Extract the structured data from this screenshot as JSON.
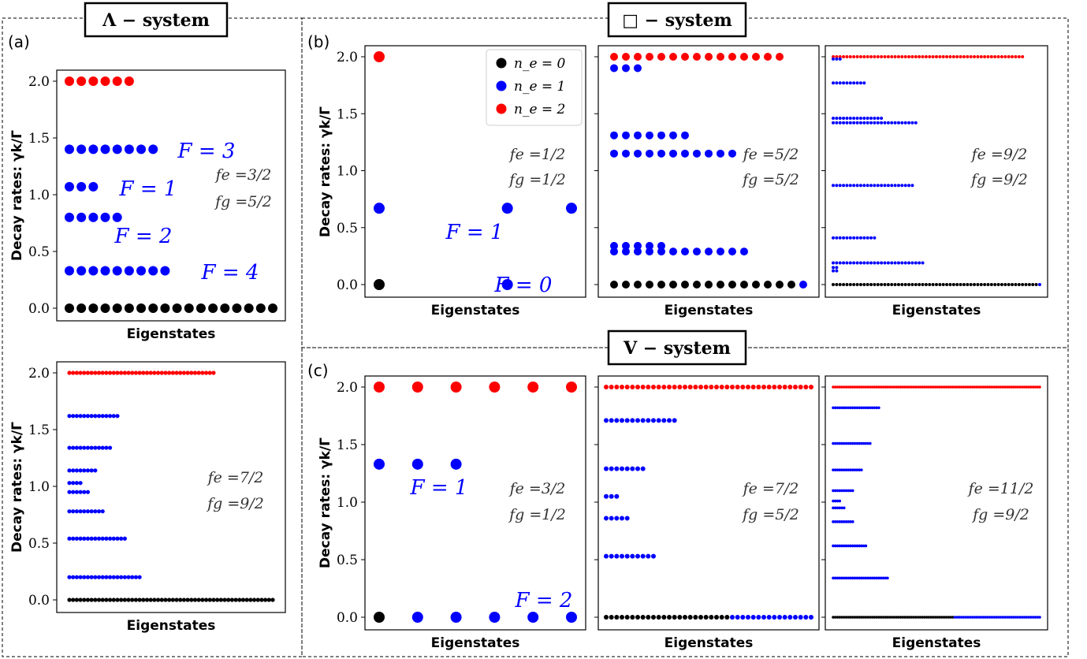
{
  "systems": {
    "lambda": {
      "title": "Λ − system"
    },
    "square": {
      "title": "□ − system"
    },
    "v": {
      "title": "V − system"
    }
  },
  "panel_labels": {
    "a": "(a)",
    "b": "(b)",
    "c": "(c)"
  },
  "legend": [
    {
      "label": "n_e = 0",
      "color": "#000000"
    },
    {
      "label": "n_e = 1",
      "color": "#0000ff"
    },
    {
      "label": "n_e = 2",
      "color": "#ff0000"
    }
  ],
  "colors": {
    "ne0": "#000000",
    "ne1": "#0000ff",
    "ne2": "#ff0000",
    "frame": "#000000"
  },
  "chart_data": [
    {
      "id": "a1",
      "type": "scatter",
      "ylim": [
        0,
        2.0
      ],
      "yticks": [
        "0.0",
        "0.5",
        "1.0",
        "1.5",
        "2.0"
      ],
      "ylabel": "Decay rates: γk/Γ",
      "xlabel": "Eigenstates",
      "params": [
        "fe =3/2",
        "fg =5/2"
      ],
      "annotations": [
        "F = 3",
        "F = 1",
        "F = 2",
        "F = 4"
      ],
      "series": [
        {
          "ne": 2,
          "y": 2.0,
          "count": 6
        },
        {
          "ne": 1,
          "y": 1.4,
          "count": 8
        },
        {
          "ne": 1,
          "y": 1.07,
          "count": 3
        },
        {
          "ne": 1,
          "y": 0.8,
          "count": 5
        },
        {
          "ne": 1,
          "y": 0.33,
          "count": 9
        },
        {
          "ne": 0,
          "y": 0.0,
          "count": 18
        }
      ]
    },
    {
      "id": "a2",
      "type": "scatter",
      "ylim": [
        0,
        2.0
      ],
      "yticks": [
        "0.0",
        "0.5",
        "1.0",
        "1.5",
        "2.0"
      ],
      "ylabel": "Decay rates: γk/Γ",
      "xlabel": "Eigenstates",
      "params": [
        "fe =7/2",
        "fg =9/2"
      ],
      "annotations": [],
      "series": [
        {
          "ne": 2,
          "y": 2.0,
          "count": 40
        },
        {
          "ne": 1,
          "y": 1.62,
          "count": 14
        },
        {
          "ne": 1,
          "y": 1.34,
          "count": 12
        },
        {
          "ne": 1,
          "y": 1.14,
          "count": 8
        },
        {
          "ne": 1,
          "y": 1.03,
          "count": 4
        },
        {
          "ne": 1,
          "y": 0.95,
          "count": 6
        },
        {
          "ne": 1,
          "y": 0.78,
          "count": 10
        },
        {
          "ne": 1,
          "y": 0.54,
          "count": 16
        },
        {
          "ne": 1,
          "y": 0.2,
          "count": 20
        },
        {
          "ne": 0,
          "y": 0.0,
          "count": 56
        }
      ]
    },
    {
      "id": "b1",
      "type": "scatter",
      "ylim": [
        0,
        2.0
      ],
      "yticks": [
        "0.0",
        "0.5",
        "1.0",
        "1.5",
        "2.0"
      ],
      "ylabel": "Decay rates: γk/Γ",
      "xlabel": "Eigenstates",
      "params": [
        "fe =1/2",
        "fg =1/2"
      ],
      "annotations": [
        "F = 1",
        "F = 0"
      ],
      "points": [
        {
          "ne": 2,
          "x": 0,
          "y": 2.0
        },
        {
          "ne": 1,
          "x": 0,
          "y": 0.67
        },
        {
          "ne": 1,
          "x": 2,
          "y": 0.67
        },
        {
          "ne": 1,
          "x": 3,
          "y": 0.67
        },
        {
          "ne": 0,
          "x": 0,
          "y": 0.0
        },
        {
          "ne": 1,
          "x": 2,
          "y": 0.0
        }
      ],
      "xcount": 4
    },
    {
      "id": "b2",
      "type": "scatter",
      "ylim": [
        0,
        2.0
      ],
      "yticks": [
        "0.0",
        "0.5",
        "1.0",
        "1.5",
        "2.0"
      ],
      "xlabel": "Eigenstates",
      "params": [
        "fe =5/2",
        "fg =5/2"
      ],
      "annotations": [],
      "series": [
        {
          "ne": 2,
          "y": 2.0,
          "count": 15
        },
        {
          "ne": 1,
          "y": 1.9,
          "count": 3
        },
        {
          "ne": 1,
          "y": 1.31,
          "count": 7
        },
        {
          "ne": 1,
          "y": 1.15,
          "count": 11
        },
        {
          "ne": 1,
          "y": 0.34,
          "count": 5
        },
        {
          "ne": 1,
          "y": 0.29,
          "count": 12
        },
        {
          "ne": 0,
          "y": 0.0,
          "count": 16
        }
      ],
      "extra": [
        {
          "ne": 1,
          "x": 16,
          "y": 0.0
        }
      ],
      "xcount": 17
    },
    {
      "id": "b3",
      "type": "scatter",
      "ylim": [
        0,
        2.0
      ],
      "yticks": [
        "0.0",
        "0.5",
        "1.0",
        "1.5",
        "2.0"
      ],
      "xlabel": "Eigenstates",
      "params": [
        "fe =9/2",
        "fg =9/2"
      ],
      "annotations": [],
      "series": [
        {
          "ne": 2,
          "y": 2.0,
          "count": 56
        },
        {
          "ne": 1,
          "y": 1.98,
          "count": 3
        },
        {
          "ne": 1,
          "y": 1.77,
          "count": 10
        },
        {
          "ne": 1,
          "y": 1.46,
          "count": 15
        },
        {
          "ne": 1,
          "y": 1.42,
          "count": 25
        },
        {
          "ne": 1,
          "y": 0.87,
          "count": 24
        },
        {
          "ne": 1,
          "y": 0.41,
          "count": 13
        },
        {
          "ne": 1,
          "y": 0.19,
          "count": 27
        },
        {
          "ne": 1,
          "y": 0.15,
          "count": 2
        },
        {
          "ne": 1,
          "y": 0.12,
          "count": 2
        },
        {
          "ne": 0,
          "y": 0.0,
          "count": 60
        }
      ],
      "extra": [
        {
          "ne": 1,
          "x": 60,
          "y": 0.0
        }
      ],
      "xcount": 61
    },
    {
      "id": "c1",
      "type": "scatter",
      "ylim": [
        0,
        2.0
      ],
      "yticks": [
        "0.0",
        "0.5",
        "1.0",
        "1.5",
        "2.0"
      ],
      "ylabel": "Decay rates: γk/Γ",
      "xlabel": "Eigenstates",
      "params": [
        "fe =3/2",
        "fg =1/2"
      ],
      "annotations": [
        "F = 1",
        "F = 2"
      ],
      "points": [
        {
          "ne": 2,
          "x": 0,
          "y": 2.0
        },
        {
          "ne": 2,
          "x": 1,
          "y": 2.0
        },
        {
          "ne": 2,
          "x": 2,
          "y": 2.0
        },
        {
          "ne": 2,
          "x": 3,
          "y": 2.0
        },
        {
          "ne": 2,
          "x": 4,
          "y": 2.0
        },
        {
          "ne": 2,
          "x": 5,
          "y": 2.0
        },
        {
          "ne": 1,
          "x": 0,
          "y": 1.33
        },
        {
          "ne": 1,
          "x": 1,
          "y": 1.33
        },
        {
          "ne": 1,
          "x": 2,
          "y": 1.33
        },
        {
          "ne": 0,
          "x": 0,
          "y": 0.0
        },
        {
          "ne": 1,
          "x": 1,
          "y": 0.0
        },
        {
          "ne": 1,
          "x": 2,
          "y": 0.0
        },
        {
          "ne": 1,
          "x": 3,
          "y": 0.0
        },
        {
          "ne": 1,
          "x": 4,
          "y": 0.0
        },
        {
          "ne": 1,
          "x": 5,
          "y": 0.0
        }
      ],
      "xcount": 6
    },
    {
      "id": "c2",
      "type": "scatter",
      "ylim": [
        0,
        2.0
      ],
      "yticks": [
        "0.0",
        "0.5",
        "1.0",
        "1.5",
        "2.0"
      ],
      "xlabel": "Eigenstates",
      "params": [
        "fe =7/2",
        "fg =5/2"
      ],
      "annotations": [],
      "series": [
        {
          "ne": 2,
          "y": 2.0,
          "count": 40
        },
        {
          "ne": 1,
          "y": 1.71,
          "count": 14
        },
        {
          "ne": 1,
          "y": 1.29,
          "count": 8
        },
        {
          "ne": 1,
          "y": 1.05,
          "count": 3
        },
        {
          "ne": 1,
          "y": 0.86,
          "count": 5
        },
        {
          "ne": 1,
          "y": 0.53,
          "count": 10
        },
        {
          "ne": 0,
          "y": 0.0,
          "count": 24
        }
      ],
      "extra_series": [
        {
          "ne": 1,
          "y": 0.0,
          "start": 24,
          "count": 16
        }
      ],
      "xcount": 40
    },
    {
      "id": "c3",
      "type": "scatter",
      "ylim": [
        0,
        2.0
      ],
      "yticks": [
        "0.0",
        "0.5",
        "1.0",
        "1.5",
        "2.0"
      ],
      "xlabel": "Eigenstates",
      "params": [
        "fe =11/2",
        "fg =9/2"
      ],
      "annotations": [],
      "series": [
        {
          "ne": 2,
          "y": 2.0,
          "count": 96
        },
        {
          "ne": 1,
          "y": 1.82,
          "count": 22
        },
        {
          "ne": 1,
          "y": 1.51,
          "count": 18
        },
        {
          "ne": 1,
          "y": 1.28,
          "count": 14
        },
        {
          "ne": 1,
          "y": 1.1,
          "count": 10
        },
        {
          "ne": 1,
          "y": 1.01,
          "count": 4
        },
        {
          "ne": 1,
          "y": 0.95,
          "count": 6
        },
        {
          "ne": 1,
          "y": 0.83,
          "count": 10
        },
        {
          "ne": 1,
          "y": 0.62,
          "count": 16
        },
        {
          "ne": 1,
          "y": 0.34,
          "count": 26
        },
        {
          "ne": 0,
          "y": 0.0,
          "count": 56
        }
      ],
      "extra_series": [
        {
          "ne": 1,
          "y": 0.0,
          "start": 56,
          "count": 40
        }
      ],
      "xcount": 96
    }
  ]
}
